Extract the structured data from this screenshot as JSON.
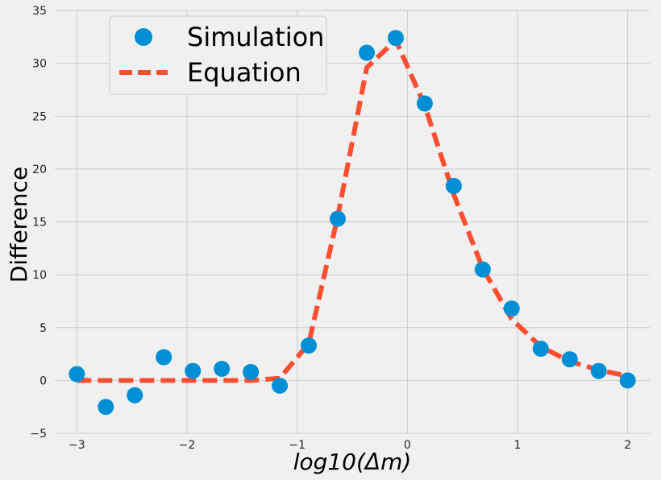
{
  "chart_data": {
    "type": "line",
    "title": "",
    "xlabel_parts": [
      "log10(Δ",
      "m",
      ")"
    ],
    "ylabel": "Difference",
    "xlim": [
      -3.2,
      2.2
    ],
    "ylim": [
      -5,
      35
    ],
    "xticks": [
      -3,
      -2,
      -1,
      0,
      1,
      2
    ],
    "xtick_labels": [
      "−3",
      "−2",
      "−1",
      "0",
      "1",
      "2"
    ],
    "yticks": [
      -5,
      0,
      5,
      10,
      15,
      20,
      25,
      30,
      35
    ],
    "ytick_labels": [
      "−5",
      "0",
      "5",
      "10",
      "15",
      "20",
      "25",
      "30",
      "35"
    ],
    "grid": true,
    "legend": {
      "placement": "top-left"
    },
    "x": [
      -3.0,
      -2.737,
      -2.474,
      -2.211,
      -1.947,
      -1.684,
      -1.421,
      -1.158,
      -0.895,
      -0.632,
      -0.368,
      -0.105,
      0.158,
      0.421,
      0.684,
      0.947,
      1.211,
      1.474,
      1.737,
      2.0
    ],
    "series": [
      {
        "name": "Simulation",
        "style": "scatter",
        "color": "#008fd5",
        "values": [
          0.6,
          -2.5,
          -1.4,
          2.2,
          0.9,
          1.1,
          0.8,
          -0.5,
          3.3,
          15.3,
          31.0,
          32.4,
          26.2,
          18.4,
          10.5,
          6.8,
          3.0,
          2.0,
          0.9,
          0.0
        ]
      },
      {
        "name": "Equation",
        "style": "dashed-line",
        "color": "#fc4f30",
        "values": [
          0.0,
          0.0,
          0.0,
          0.0,
          0.0,
          0.0,
          0.0,
          0.2,
          3.5,
          15.5,
          29.6,
          32.2,
          26.0,
          17.6,
          10.6,
          5.8,
          3.2,
          1.8,
          1.0,
          0.4
        ]
      }
    ]
  }
}
